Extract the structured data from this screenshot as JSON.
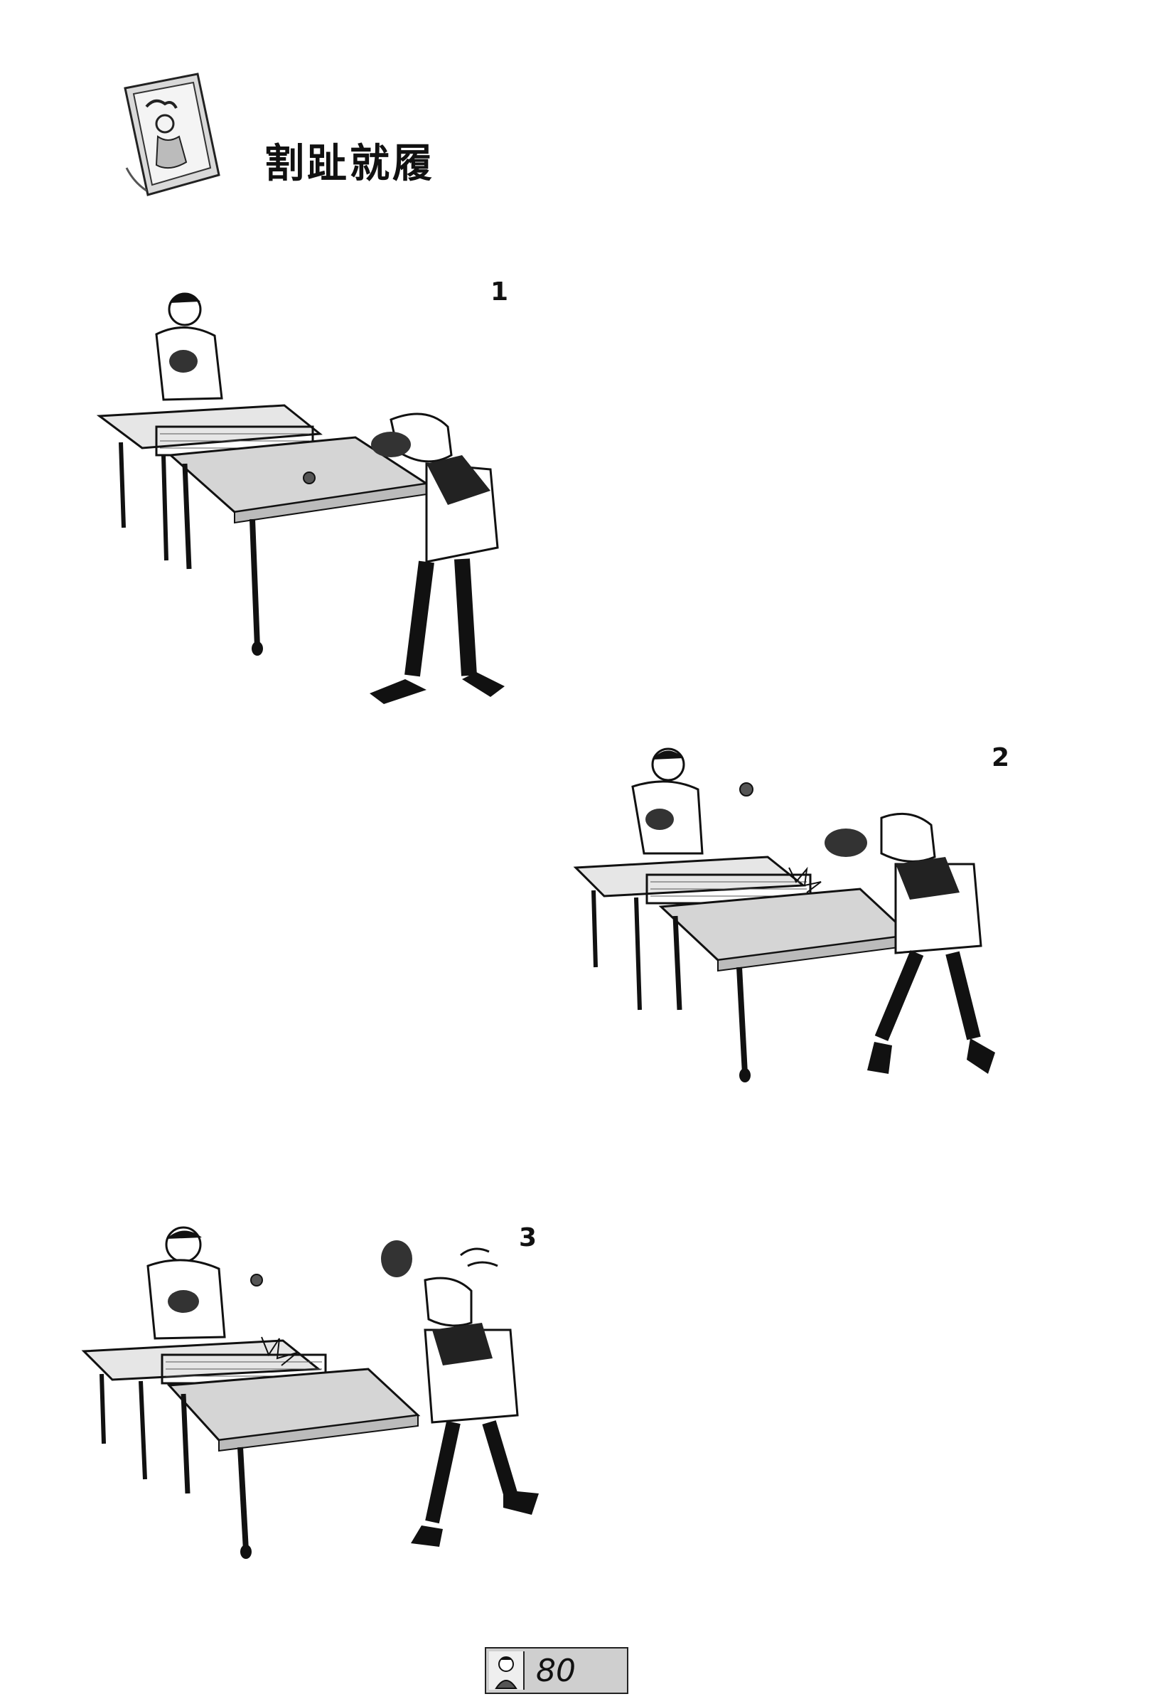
{
  "title": "割趾就履",
  "panels": [
    {
      "number": "1"
    },
    {
      "number": "2"
    },
    {
      "number": "3"
    }
  ],
  "page_number": "80",
  "icons": {
    "header": "cartoon-sketch-card-icon",
    "footer": "character-portrait-icon"
  }
}
